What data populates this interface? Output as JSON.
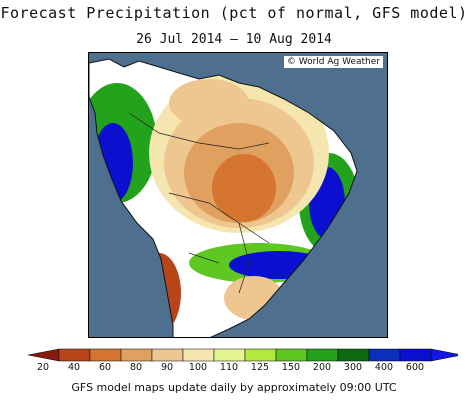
{
  "header": {
    "title": "Forecast Precipitation (pct of normal, GFS model)",
    "date_range": "26 Jul 2014 – 10 Aug 2014"
  },
  "map": {
    "credit": "© World Ag Weather",
    "ocean_color": "#4f6f8e",
    "land_color": "#ffffff"
  },
  "legend": {
    "labels": [
      "20",
      "40",
      "60",
      "80",
      "90",
      "100",
      "110",
      "125",
      "150",
      "200",
      "300",
      "400",
      "600"
    ],
    "colors": [
      "#8b1a0e",
      "#b8451a",
      "#d6752f",
      "#e0a060",
      "#edc690",
      "#f5e6b0",
      "#e2f590",
      "#b2e840",
      "#5fc722",
      "#23a21c",
      "#0b6a10",
      "#0a2fbd",
      "#0b0fcf",
      "#1418e6"
    ]
  },
  "footer": {
    "text": "GFS model maps update daily by approximately 09:00 UTC"
  }
}
